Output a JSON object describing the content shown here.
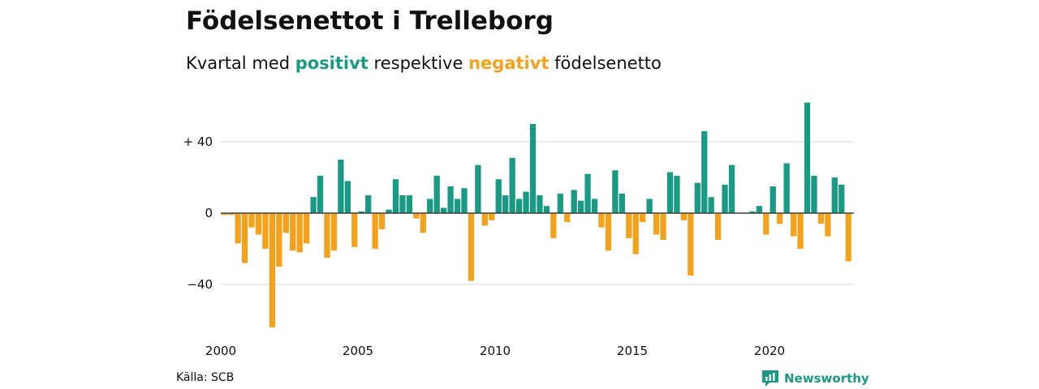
{
  "header": {
    "title": "Födelsenettot i Trelleborg",
    "subtitle_prefix": "Kvartal med",
    "subtitle_positive": "positivt",
    "subtitle_middle": "respektive",
    "subtitle_negative": "negativt",
    "subtitle_suffix": "födelsenetto"
  },
  "footer": {
    "source": "Källa: SCB",
    "brand": "Newsworthy"
  },
  "colors": {
    "positive": "#1a9985",
    "negative": "#f4a21c",
    "grid": "#d9d9d9",
    "zero_line": "#333333"
  },
  "chart_data": {
    "type": "bar",
    "x_start": "2000 Q1",
    "frequency": "quarterly",
    "title": "Födelsenettot i Trelleborg",
    "ylim": [
      -66,
      64
    ],
    "y_ticks": [
      {
        "value": 40,
        "label": "+ 40"
      },
      {
        "value": 0,
        "label": "0"
      },
      {
        "value": -40,
        "label": "−40"
      }
    ],
    "x_ticks": [
      "2000",
      "2005",
      "2010",
      "2015",
      "2020"
    ],
    "grid": true,
    "values": [
      -1,
      -1,
      -17,
      -28,
      -8,
      -12,
      -20,
      -64,
      -30,
      -11,
      -21,
      -22,
      -17,
      9,
      21,
      -25,
      -21,
      30,
      18,
      -19,
      1,
      10,
      -20,
      -9,
      2,
      19,
      10,
      10,
      -3,
      -11,
      8,
      21,
      3,
      15,
      8,
      14,
      -38,
      27,
      -7,
      -4,
      19,
      10,
      31,
      8,
      12,
      50,
      10,
      4,
      -14,
      11,
      -5,
      13,
      7,
      22,
      8,
      -8,
      -21,
      24,
      11,
      -14,
      -23,
      -5,
      8,
      -12,
      -15,
      23,
      21,
      -4,
      -35,
      17,
      46,
      9,
      -15,
      16,
      27,
      0,
      0,
      1,
      4,
      -12,
      15,
      -6,
      28,
      -13,
      -20,
      62,
      21,
      -6,
      -13,
      20,
      16,
      -27
    ]
  }
}
